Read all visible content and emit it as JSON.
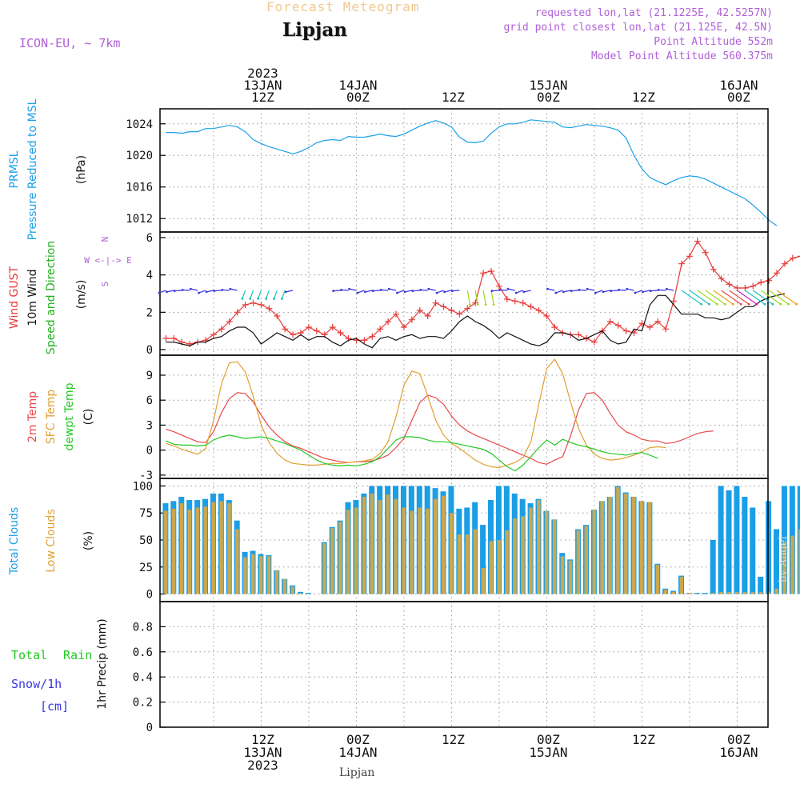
{
  "colors": {
    "pressure": "#1aa0e8",
    "gust": "#e83a3a",
    "wind": "#111111",
    "wind_label": "#1fb21f",
    "temp2m": "#e84848",
    "sfc_temp": "#e0a030",
    "dewpt": "#22c822",
    "total_clouds": "#1a9ee6",
    "low_clouds": "#c8a850",
    "header_purple": "#b060d8",
    "title_orange": "#f0c890",
    "snow": "#3838e0",
    "rain": "#22c822"
  },
  "header": {
    "banner": "Forecast Meteogram",
    "location": "Lipjan",
    "model": "ICON-EU, ~ 7km",
    "requested": "requested lon,lat (21.1225E, 42.5257N)",
    "grid": "grid point closest lon,lat (21.125E, 42.5N)",
    "point_alt": "Point Altitude 552m",
    "model_alt": "Model Point Altitude 560.375m",
    "credit": "by Angel",
    "bottom_location": "Lipjan"
  },
  "time_axis": {
    "top_labels": [
      {
        "h": 12,
        "lines": [
          "2023",
          "13JAN",
          "12Z"
        ]
      },
      {
        "h": 24,
        "lines": [
          "14JAN",
          "00Z"
        ]
      },
      {
        "h": 36,
        "lines": [
          "12Z"
        ]
      },
      {
        "h": 48,
        "lines": [
          "15JAN",
          "00Z"
        ]
      },
      {
        "h": 60,
        "lines": [
          "12Z"
        ]
      },
      {
        "h": 72,
        "lines": [
          "16JAN",
          "00Z"
        ]
      }
    ],
    "bottom_labels": [
      {
        "h": 12,
        "lines": [
          "12Z",
          "13JAN",
          "2023"
        ]
      },
      {
        "h": 24,
        "lines": [
          "00Z",
          "14JAN"
        ]
      },
      {
        "h": 36,
        "lines": [
          "12Z"
        ]
      },
      {
        "h": 48,
        "lines": [
          "00Z",
          "15JAN"
        ]
      },
      {
        "h": 60,
        "lines": [
          "12Z"
        ]
      },
      {
        "h": 72,
        "lines": [
          "00Z",
          "16JAN"
        ]
      }
    ]
  },
  "chart_data": [
    {
      "type": "line",
      "title": "Pressure Reduced to MSL",
      "label_lines": [
        "PRMSL",
        "Pressure Reduced to MSL"
      ],
      "unit_label": "(hPa)",
      "ylim": [
        1010.3,
        1025.9
      ],
      "yticks": [
        1012,
        1016,
        1020,
        1024
      ],
      "series": [
        {
          "name": "PRMSL",
          "color": "pressure",
          "values": [
            1022.9,
            1022.9,
            1022.8,
            1023.0,
            1023.0,
            1023.4,
            1023.4,
            1023.6,
            1023.8,
            1023.6,
            1023.0,
            1022.0,
            1021.5,
            1021.1,
            1020.8,
            1020.5,
            1020.2,
            1020.5,
            1021.0,
            1021.6,
            1021.9,
            1022.0,
            1021.9,
            1022.4,
            1022.3,
            1022.3,
            1022.5,
            1022.7,
            1022.5,
            1022.4,
            1022.7,
            1023.2,
            1023.7,
            1024.1,
            1024.4,
            1024.1,
            1023.6,
            1022.3,
            1021.7,
            1021.6,
            1021.8,
            1022.8,
            1023.6,
            1024.0,
            1024.0,
            1024.2,
            1024.5,
            1024.4,
            1024.3,
            1024.2,
            1023.6,
            1023.5,
            1023.7,
            1023.9,
            1023.8,
            1023.7,
            1023.5,
            1023.2,
            1022.2,
            1020.0,
            1018.3,
            1017.2,
            1016.7,
            1016.3,
            1016.8,
            1017.2,
            1017.4,
            1017.3,
            1017.0,
            1016.5,
            1016.0,
            1015.5,
            1015.0,
            1014.5,
            1013.7,
            1012.8,
            1011.8,
            1011.1
          ]
        }
      ]
    },
    {
      "type": "line",
      "title": "Wind GUST / 10m Wind Speed and Direction",
      "label_lines": [
        "Wind GUST",
        "10m Wind",
        "Speed and Direction"
      ],
      "unit_label": "(m/s)",
      "compass": [
        "N",
        "W <-|-> E",
        "S"
      ],
      "ylim": [
        -0.3,
        6.3
      ],
      "yticks": [
        0,
        2,
        4,
        6
      ],
      "series": [
        {
          "name": "Wind GUST",
          "color": "gust",
          "marker": "+",
          "values": [
            0.6,
            0.6,
            0.4,
            0.3,
            0.4,
            0.5,
            0.8,
            1.1,
            1.5,
            2.0,
            2.4,
            2.5,
            2.4,
            2.2,
            1.8,
            1.1,
            0.8,
            0.9,
            1.2,
            1.0,
            0.8,
            1.2,
            0.9,
            0.6,
            0.5,
            0.5,
            0.7,
            1.1,
            1.5,
            1.9,
            1.2,
            1.6,
            2.1,
            1.8,
            2.5,
            2.3,
            2.1,
            1.9,
            2.2,
            2.5,
            4.1,
            4.2,
            3.4,
            2.7,
            2.6,
            2.5,
            2.3,
            2.1,
            1.8,
            1.2,
            0.9,
            0.8,
            0.8,
            0.6,
            0.4,
            1.0,
            1.5,
            1.3,
            1.0,
            0.9,
            1.4,
            1.2,
            1.5,
            1.1,
            2.6,
            4.6,
            5.0,
            5.8,
            5.2,
            4.3,
            3.8,
            3.5,
            3.3,
            3.3,
            3.4,
            3.6,
            3.7,
            4.1,
            4.6,
            4.9,
            5.0,
            5.0
          ]
        },
        {
          "name": "10m Wind",
          "color": "wind",
          "values": [
            0.4,
            0.4,
            0.3,
            0.2,
            0.4,
            0.4,
            0.6,
            0.7,
            1.0,
            1.2,
            1.2,
            0.9,
            0.3,
            0.6,
            0.9,
            0.7,
            0.5,
            0.8,
            0.5,
            0.7,
            0.7,
            0.4,
            0.2,
            0.5,
            0.6,
            0.3,
            0.1,
            0.6,
            0.7,
            0.5,
            0.7,
            0.8,
            0.6,
            0.7,
            0.7,
            0.6,
            1.0,
            1.5,
            1.8,
            1.5,
            1.3,
            1.0,
            0.6,
            0.9,
            0.7,
            0.5,
            0.3,
            0.2,
            0.4,
            0.9,
            0.9,
            0.8,
            0.5,
            0.6,
            0.8,
            1.0,
            0.5,
            0.3,
            0.4,
            1.1,
            1.0,
            2.4,
            2.9,
            2.9,
            2.4,
            1.9,
            1.9,
            1.9,
            1.7,
            1.7,
            1.6,
            1.7,
            2.0,
            2.3,
            2.3,
            2.6,
            2.8,
            2.9,
            3.0
          ]
        }
      ]
    },
    {
      "type": "line",
      "title": "2m Temp / SFC Temp / dewpt Temp",
      "label_lines": [
        "2m Temp",
        "SFC Temp",
        "dewpt Temp"
      ],
      "unit_label": "(C)",
      "ylim": [
        -3.4,
        11.4
      ],
      "yticks": [
        -3,
        0,
        3,
        6,
        9
      ],
      "series": [
        {
          "name": "2m Temp",
          "color": "temp2m",
          "values": [
            2.5,
            2.2,
            1.8,
            1.4,
            1.0,
            0.9,
            2.2,
            4.5,
            6.2,
            6.9,
            6.8,
            5.8,
            4.2,
            2.8,
            1.8,
            1.0,
            0.5,
            0.2,
            -0.2,
            -0.6,
            -1.0,
            -1.2,
            -1.4,
            -1.5,
            -1.4,
            -1.4,
            -1.3,
            -1.0,
            -0.6,
            0.3,
            1.4,
            3.6,
            5.7,
            6.6,
            6.3,
            5.5,
            4.1,
            3.0,
            2.3,
            1.8,
            1.4,
            1.0,
            0.6,
            0.2,
            -0.2,
            -0.6,
            -1.0,
            -1.5,
            -1.7,
            -1.2,
            -0.8,
            1.7,
            4.8,
            6.8,
            6.9,
            6.0,
            4.4,
            3.0,
            2.2,
            1.8,
            1.3,
            1.1,
            1.1,
            0.8,
            0.9,
            1.2,
            1.6,
            2.0,
            2.2,
            2.3
          ]
        },
        {
          "name": "SFC Temp",
          "color": "sfc_temp",
          "values": [
            0.8,
            0.5,
            0.1,
            -0.2,
            -0.5,
            0.2,
            3.5,
            8.0,
            10.5,
            10.6,
            9.4,
            6.5,
            3.0,
            0.9,
            -0.4,
            -1.2,
            -1.6,
            -1.7,
            -1.8,
            -1.8,
            -1.7,
            -1.6,
            -1.6,
            -1.5,
            -1.4,
            -1.3,
            -1.1,
            -0.4,
            1.0,
            4.0,
            7.8,
            9.5,
            9.2,
            6.5,
            3.6,
            1.8,
            0.8,
            0.2,
            -0.5,
            -1.2,
            -1.7,
            -2.0,
            -2.1,
            -1.8,
            -1.5,
            -0.9,
            1.0,
            5.5,
            9.8,
            10.9,
            9.2,
            5.8,
            2.6,
            0.6,
            -0.5,
            -1.0,
            -1.2,
            -1.1,
            -0.9,
            -0.6,
            -0.2,
            0.3,
            0.4,
            0.3
          ]
        },
        {
          "name": "dewpt Temp",
          "color": "dewpt",
          "values": [
            1.1,
            0.7,
            0.6,
            0.6,
            0.5,
            0.6,
            1.2,
            1.6,
            1.8,
            1.6,
            1.4,
            1.5,
            1.6,
            1.4,
            1.1,
            0.8,
            0.4,
            0.0,
            -0.6,
            -1.2,
            -1.6,
            -1.8,
            -1.9,
            -1.8,
            -1.9,
            -1.7,
            -1.4,
            -0.8,
            0.2,
            1.2,
            1.6,
            1.6,
            1.5,
            1.2,
            1.0,
            1.0,
            0.9,
            0.7,
            0.5,
            0.3,
            0.1,
            -0.4,
            -1.2,
            -2.0,
            -2.5,
            -1.8,
            -0.8,
            0.3,
            1.2,
            0.6,
            1.3,
            0.9,
            0.6,
            0.4,
            0.1,
            -0.2,
            -0.4,
            -0.5,
            -0.6,
            -0.4,
            -0.3,
            -0.6,
            -1.0
          ]
        }
      ]
    },
    {
      "type": "bar",
      "title": "Total Clouds / Low Clouds",
      "label_lines": [
        "Total Clouds",
        "Low Clouds"
      ],
      "unit_label": "(%)",
      "ylim": [
        -7,
        107
      ],
      "yticks": [
        0,
        25,
        50,
        75,
        100
      ],
      "series": [
        {
          "name": "Total Clouds",
          "color": "total_clouds",
          "values": [
            84,
            86,
            90,
            87,
            87,
            88,
            93,
            93,
            87,
            68,
            39,
            40,
            37,
            36,
            22,
            14,
            8,
            2,
            1,
            0,
            48,
            62,
            68,
            85,
            87,
            93,
            100,
            100,
            100,
            100,
            100,
            100,
            100,
            100,
            98,
            95,
            100,
            79,
            80,
            85,
            64,
            87,
            100,
            100,
            93,
            88,
            84,
            88,
            77,
            69,
            38,
            32,
            60,
            64,
            78,
            86,
            90,
            100,
            94,
            90,
            86,
            85,
            28,
            5,
            3,
            17,
            1,
            1,
            1,
            50,
            100,
            96,
            100,
            90,
            80,
            16,
            86,
            60,
            100,
            100,
            100,
            100,
            100,
            100
          ]
        },
        {
          "name": "Low Clouds",
          "color": "low_clouds",
          "values": [
            77,
            79,
            84,
            78,
            80,
            81,
            85,
            86,
            84,
            60,
            34,
            37,
            35,
            35,
            22,
            14,
            7,
            1,
            0,
            0,
            47,
            61,
            67,
            78,
            80,
            90,
            93,
            87,
            92,
            88,
            80,
            77,
            80,
            79,
            88,
            91,
            75,
            55,
            55,
            60,
            24,
            49,
            50,
            59,
            70,
            72,
            80,
            87,
            77,
            69,
            35,
            31,
            59,
            63,
            78,
            86,
            90,
            99,
            93,
            90,
            86,
            85,
            27,
            4,
            2,
            16,
            1,
            0,
            0,
            1,
            2,
            2,
            2,
            2,
            2,
            2,
            2,
            5,
            48,
            54,
            60,
            62,
            65,
            68
          ]
        }
      ]
    },
    {
      "type": "bar",
      "title": "Total Rain / Snow/1h",
      "label_lines": [
        "Total",
        "Rain",
        "Snow/1h",
        "[cm]",
        "1hr Precip (mm)"
      ],
      "unit_label": "1hr Precip (mm)",
      "ylim": [
        0,
        1.0
      ],
      "yticks": [
        0,
        0.2,
        0.4,
        0.6,
        0.8
      ],
      "series": []
    }
  ]
}
